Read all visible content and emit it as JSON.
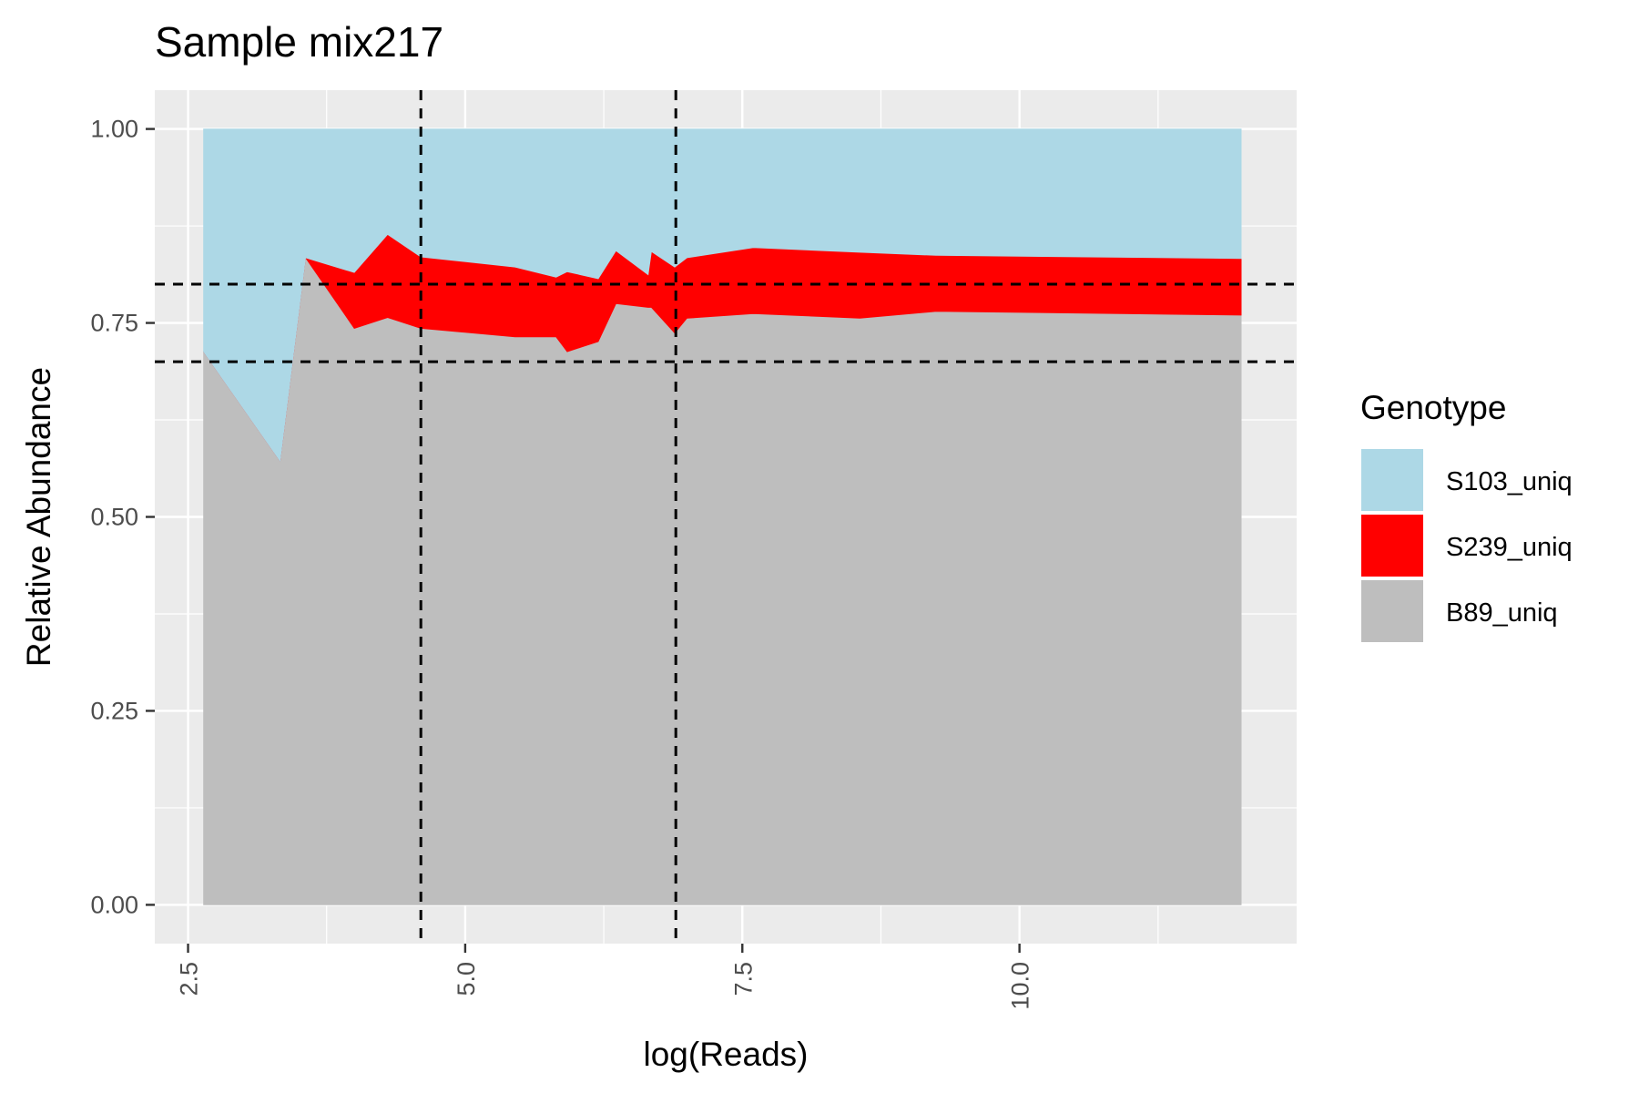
{
  "chart_data": {
    "type": "area",
    "title": "Sample mix217",
    "xlabel": "log(Reads)",
    "ylabel": "Relative Abundance",
    "xlim": [
      2.2,
      12.5
    ],
    "ylim": [
      -0.05,
      1.05
    ],
    "x_ticks": [
      2.5,
      5.0,
      7.5,
      10.0
    ],
    "x_tick_labels": [
      "2.5",
      "5.0",
      "7.5",
      "10.0"
    ],
    "y_ticks": [
      0.0,
      0.25,
      0.5,
      0.75,
      1.0
    ],
    "y_tick_labels": [
      "0.00",
      "0.25",
      "0.50",
      "0.75",
      "1.00"
    ],
    "x_tick_label_rotation": "vertical",
    "grid": true,
    "legend_position": "right",
    "legend_title": "Genotype",
    "x": [
      2.64,
      3.33,
      3.56,
      4.0,
      4.3,
      4.6,
      5.45,
      5.82,
      5.92,
      6.2,
      6.36,
      6.65,
      6.68,
      6.89,
      7.0,
      7.6,
      8.56,
      9.25,
      12.0
    ],
    "series": [
      {
        "name": "B89_uniq",
        "color": "#bebebe",
        "values": [
          0.713,
          0.572,
          0.834,
          0.743,
          0.757,
          0.743,
          0.732,
          0.732,
          0.713,
          0.726,
          0.775,
          0.77,
          0.77,
          0.737,
          0.756,
          0.762,
          0.756,
          0.765,
          0.76
        ]
      },
      {
        "name": "S239_uniq",
        "color": "#ff0000",
        "values": [
          0.0,
          0.0,
          0.0,
          0.072,
          0.107,
          0.092,
          0.09,
          0.077,
          0.103,
          0.081,
          0.068,
          0.042,
          0.072,
          0.085,
          0.078,
          0.085,
          0.085,
          0.072,
          0.073
        ]
      },
      {
        "name": "S103_uniq",
        "color": "#add8e6",
        "values": [
          0.287,
          0.428,
          0.166,
          0.185,
          0.136,
          0.165,
          0.178,
          0.191,
          0.184,
          0.193,
          0.157,
          0.188,
          0.158,
          0.178,
          0.166,
          0.153,
          0.159,
          0.163,
          0.167
        ]
      }
    ],
    "legend_order": [
      "S103_uniq",
      "S239_uniq",
      "B89_uniq"
    ],
    "reference_lines": {
      "vertical_x": [
        4.6,
        6.9
      ],
      "horizontal_y": [
        0.8,
        0.7
      ],
      "style": "dashed"
    },
    "panel_background": "#ebebeb",
    "grid_color": "#ffffff"
  }
}
